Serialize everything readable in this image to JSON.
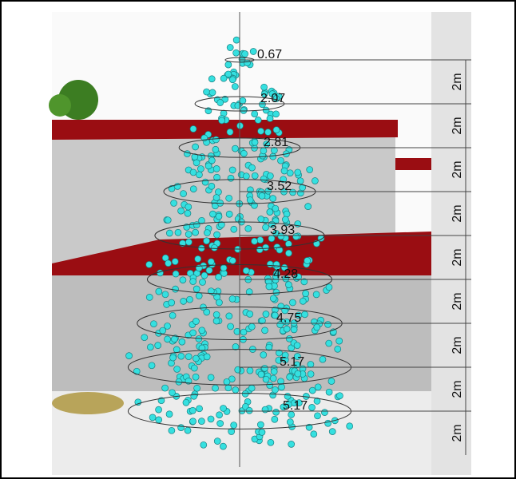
{
  "radii": [
    0.67,
    2.07,
    2.81,
    3.52,
    3.93,
    4.28,
    4.75,
    5.17,
    5.17
  ],
  "heights": [
    "2m",
    "2m",
    "2m",
    "2m",
    "2m",
    "2m",
    "2m",
    "2m",
    "2m"
  ]
}
